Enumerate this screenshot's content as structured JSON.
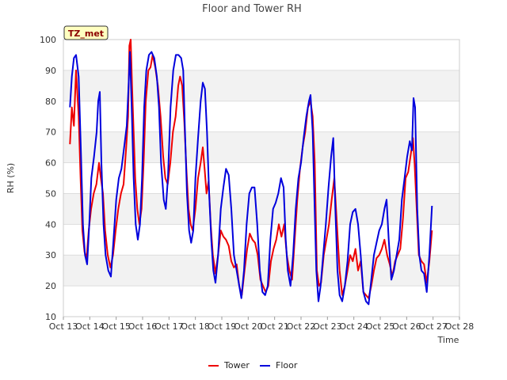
{
  "chart_data": {
    "type": "line",
    "title": "Floor and Tower RH",
    "xlabel": "Time",
    "ylabel": "RH (%)",
    "ylim": [
      10,
      100
    ],
    "yticks": [
      10,
      20,
      30,
      40,
      50,
      60,
      70,
      80,
      90,
      100
    ],
    "xlim": [
      13,
      28
    ],
    "xticks": [
      {
        "v": 13,
        "label": "Oct 13"
      },
      {
        "v": 14,
        "label": "Oct 14"
      },
      {
        "v": 15,
        "label": "Oct 15"
      },
      {
        "v": 16,
        "label": "Oct 16"
      },
      {
        "v": 17,
        "label": "Oct 17"
      },
      {
        "v": 18,
        "label": "Oct 18"
      },
      {
        "v": 19,
        "label": "Oct 19"
      },
      {
        "v": 20,
        "label": "Oct 20"
      },
      {
        "v": 21,
        "label": "Oct 21"
      },
      {
        "v": 22,
        "label": "Oct 22"
      },
      {
        "v": 23,
        "label": "Oct 23"
      },
      {
        "v": 24,
        "label": "Oct 24"
      },
      {
        "v": 25,
        "label": "Oct 25"
      },
      {
        "v": 26,
        "label": "Oct 26"
      },
      {
        "v": 27,
        "label": "Oct 27"
      },
      {
        "v": 28,
        "label": "Oct 28"
      }
    ],
    "site_label": "TZ_met",
    "series": [
      {
        "name": "Tower",
        "color": "#ee0000",
        "points": [
          [
            13.25,
            66
          ],
          [
            13.32,
            78
          ],
          [
            13.4,
            72
          ],
          [
            13.48,
            90
          ],
          [
            13.58,
            75
          ],
          [
            13.65,
            55
          ],
          [
            13.72,
            38
          ],
          [
            13.8,
            31
          ],
          [
            13.88,
            29
          ],
          [
            13.96,
            38
          ],
          [
            14.05,
            45
          ],
          [
            14.15,
            50
          ],
          [
            14.25,
            53
          ],
          [
            14.35,
            60
          ],
          [
            14.42,
            55
          ],
          [
            14.5,
            50
          ],
          [
            14.58,
            38
          ],
          [
            14.68,
            30
          ],
          [
            14.78,
            26
          ],
          [
            14.88,
            30
          ],
          [
            14.98,
            38
          ],
          [
            15.08,
            45
          ],
          [
            15.18,
            50
          ],
          [
            15.28,
            53
          ],
          [
            15.38,
            65
          ],
          [
            15.45,
            75
          ],
          [
            15.5,
            98
          ],
          [
            15.55,
            100
          ],
          [
            15.6,
            85
          ],
          [
            15.66,
            70
          ],
          [
            15.72,
            55
          ],
          [
            15.8,
            45
          ],
          [
            15.88,
            40
          ],
          [
            15.96,
            45
          ],
          [
            16.04,
            60
          ],
          [
            16.12,
            80
          ],
          [
            16.22,
            90
          ],
          [
            16.3,
            91
          ],
          [
            16.38,
            95
          ],
          [
            16.48,
            91
          ],
          [
            16.58,
            85
          ],
          [
            16.68,
            75
          ],
          [
            16.78,
            62
          ],
          [
            16.86,
            55
          ],
          [
            16.95,
            53
          ],
          [
            17.05,
            60
          ],
          [
            17.15,
            70
          ],
          [
            17.25,
            75
          ],
          [
            17.35,
            85
          ],
          [
            17.42,
            88
          ],
          [
            17.5,
            85
          ],
          [
            17.58,
            73
          ],
          [
            17.66,
            58
          ],
          [
            17.74,
            45
          ],
          [
            17.82,
            40
          ],
          [
            17.9,
            38
          ],
          [
            18.0,
            45
          ],
          [
            18.1,
            55
          ],
          [
            18.2,
            60
          ],
          [
            18.28,
            65
          ],
          [
            18.35,
            58
          ],
          [
            18.42,
            50
          ],
          [
            18.5,
            54
          ],
          [
            18.58,
            40
          ],
          [
            18.66,
            30
          ],
          [
            18.76,
            24
          ],
          [
            18.86,
            30
          ],
          [
            18.96,
            38
          ],
          [
            19.06,
            36
          ],
          [
            19.16,
            35
          ],
          [
            19.26,
            33
          ],
          [
            19.36,
            28
          ],
          [
            19.46,
            26
          ],
          [
            19.56,
            27
          ],
          [
            19.66,
            20
          ],
          [
            19.76,
            17
          ],
          [
            19.86,
            25
          ],
          [
            19.96,
            32
          ],
          [
            20.06,
            37
          ],
          [
            20.16,
            35
          ],
          [
            20.26,
            34
          ],
          [
            20.36,
            30
          ],
          [
            20.46,
            22
          ],
          [
            20.56,
            20
          ],
          [
            20.66,
            18
          ],
          [
            20.76,
            20
          ],
          [
            20.86,
            28
          ],
          [
            20.96,
            32
          ],
          [
            21.06,
            35
          ],
          [
            21.16,
            40
          ],
          [
            21.26,
            36
          ],
          [
            21.36,
            40
          ],
          [
            21.46,
            30
          ],
          [
            21.56,
            25
          ],
          [
            21.66,
            22
          ],
          [
            21.76,
            35
          ],
          [
            21.86,
            48
          ],
          [
            21.96,
            58
          ],
          [
            22.06,
            65
          ],
          [
            22.16,
            70
          ],
          [
            22.26,
            78
          ],
          [
            22.36,
            80
          ],
          [
            22.44,
            75
          ],
          [
            22.52,
            60
          ],
          [
            22.6,
            25
          ],
          [
            22.68,
            20
          ],
          [
            22.76,
            21
          ],
          [
            22.86,
            30
          ],
          [
            22.96,
            35
          ],
          [
            23.06,
            40
          ],
          [
            23.16,
            48
          ],
          [
            23.26,
            55
          ],
          [
            23.36,
            40
          ],
          [
            23.46,
            25
          ],
          [
            23.56,
            17
          ],
          [
            23.66,
            20
          ],
          [
            23.76,
            25
          ],
          [
            23.86,
            30
          ],
          [
            23.96,
            28
          ],
          [
            24.06,
            32
          ],
          [
            24.16,
            25
          ],
          [
            24.26,
            28
          ],
          [
            24.36,
            18
          ],
          [
            24.46,
            17
          ],
          [
            24.56,
            16
          ],
          [
            24.66,
            20
          ],
          [
            24.76,
            25
          ],
          [
            24.86,
            29
          ],
          [
            24.96,
            30
          ],
          [
            25.06,
            32
          ],
          [
            25.16,
            35
          ],
          [
            25.26,
            30
          ],
          [
            25.36,
            27
          ],
          [
            25.46,
            23
          ],
          [
            25.56,
            28
          ],
          [
            25.66,
            30
          ],
          [
            25.76,
            32
          ],
          [
            25.86,
            42
          ],
          [
            25.96,
            55
          ],
          [
            26.06,
            57
          ],
          [
            26.16,
            63
          ],
          [
            26.24,
            68
          ],
          [
            26.3,
            60
          ],
          [
            26.38,
            45
          ],
          [
            26.46,
            30
          ],
          [
            26.56,
            28
          ],
          [
            26.66,
            27
          ],
          [
            26.76,
            21
          ],
          [
            26.86,
            28
          ],
          [
            26.96,
            38
          ]
        ]
      },
      {
        "name": "Floor",
        "color": "#0000dd",
        "points": [
          [
            13.25,
            78
          ],
          [
            13.32,
            88
          ],
          [
            13.4,
            94
          ],
          [
            13.48,
            95
          ],
          [
            13.58,
            88
          ],
          [
            13.66,
            65
          ],
          [
            13.74,
            40
          ],
          [
            13.82,
            30
          ],
          [
            13.9,
            27
          ],
          [
            13.98,
            40
          ],
          [
            14.06,
            55
          ],
          [
            14.16,
            62
          ],
          [
            14.26,
            70
          ],
          [
            14.32,
            80
          ],
          [
            14.38,
            83
          ],
          [
            14.44,
            60
          ],
          [
            14.52,
            40
          ],
          [
            14.6,
            30
          ],
          [
            14.7,
            25
          ],
          [
            14.8,
            23
          ],
          [
            14.9,
            35
          ],
          [
            15.0,
            48
          ],
          [
            15.1,
            55
          ],
          [
            15.2,
            58
          ],
          [
            15.3,
            65
          ],
          [
            15.4,
            72
          ],
          [
            15.47,
            85
          ],
          [
            15.52,
            96
          ],
          [
            15.58,
            80
          ],
          [
            15.66,
            55
          ],
          [
            15.74,
            40
          ],
          [
            15.82,
            35
          ],
          [
            15.9,
            40
          ],
          [
            15.98,
            55
          ],
          [
            16.06,
            78
          ],
          [
            16.14,
            90
          ],
          [
            16.24,
            95
          ],
          [
            16.34,
            96
          ],
          [
            16.44,
            94
          ],
          [
            16.54,
            88
          ],
          [
            16.62,
            78
          ],
          [
            16.7,
            60
          ],
          [
            16.8,
            48
          ],
          [
            16.88,
            45
          ],
          [
            16.96,
            55
          ],
          [
            17.06,
            78
          ],
          [
            17.16,
            90
          ],
          [
            17.26,
            95
          ],
          [
            17.36,
            95
          ],
          [
            17.46,
            94
          ],
          [
            17.54,
            90
          ],
          [
            17.6,
            72
          ],
          [
            17.68,
            50
          ],
          [
            17.76,
            38
          ],
          [
            17.84,
            34
          ],
          [
            17.92,
            38
          ],
          [
            18.0,
            55
          ],
          [
            18.1,
            68
          ],
          [
            18.2,
            80
          ],
          [
            18.28,
            86
          ],
          [
            18.36,
            84
          ],
          [
            18.44,
            70
          ],
          [
            18.52,
            50
          ],
          [
            18.6,
            35
          ],
          [
            18.68,
            25
          ],
          [
            18.76,
            21
          ],
          [
            18.86,
            30
          ],
          [
            18.96,
            45
          ],
          [
            19.06,
            52
          ],
          [
            19.16,
            58
          ],
          [
            19.26,
            56
          ],
          [
            19.36,
            45
          ],
          [
            19.46,
            30
          ],
          [
            19.56,
            25
          ],
          [
            19.66,
            20
          ],
          [
            19.74,
            16
          ],
          [
            19.84,
            25
          ],
          [
            19.94,
            40
          ],
          [
            20.04,
            50
          ],
          [
            20.14,
            52
          ],
          [
            20.24,
            52
          ],
          [
            20.34,
            40
          ],
          [
            20.44,
            25
          ],
          [
            20.54,
            18
          ],
          [
            20.64,
            17
          ],
          [
            20.74,
            20
          ],
          [
            20.84,
            35
          ],
          [
            20.94,
            45
          ],
          [
            21.04,
            47
          ],
          [
            21.14,
            50
          ],
          [
            21.24,
            55
          ],
          [
            21.34,
            52
          ],
          [
            21.42,
            35
          ],
          [
            21.5,
            25
          ],
          [
            21.6,
            20
          ],
          [
            21.7,
            30
          ],
          [
            21.8,
            45
          ],
          [
            21.9,
            55
          ],
          [
            22.0,
            60
          ],
          [
            22.1,
            68
          ],
          [
            22.2,
            75
          ],
          [
            22.3,
            80
          ],
          [
            22.36,
            82
          ],
          [
            22.44,
            70
          ],
          [
            22.5,
            50
          ],
          [
            22.58,
            25
          ],
          [
            22.66,
            15
          ],
          [
            22.74,
            20
          ],
          [
            22.84,
            30
          ],
          [
            22.94,
            40
          ],
          [
            23.04,
            52
          ],
          [
            23.14,
            62
          ],
          [
            23.22,
            68
          ],
          [
            23.3,
            45
          ],
          [
            23.38,
            25
          ],
          [
            23.46,
            17
          ],
          [
            23.56,
            15
          ],
          [
            23.66,
            20
          ],
          [
            23.76,
            28
          ],
          [
            23.86,
            40
          ],
          [
            23.96,
            44
          ],
          [
            24.06,
            45
          ],
          [
            24.16,
            40
          ],
          [
            24.26,
            30
          ],
          [
            24.36,
            18
          ],
          [
            24.46,
            15
          ],
          [
            24.56,
            14
          ],
          [
            24.66,
            22
          ],
          [
            24.76,
            30
          ],
          [
            24.86,
            34
          ],
          [
            24.96,
            38
          ],
          [
            25.06,
            40
          ],
          [
            25.16,
            45
          ],
          [
            25.24,
            48
          ],
          [
            25.32,
            35
          ],
          [
            25.42,
            22
          ],
          [
            25.52,
            25
          ],
          [
            25.62,
            30
          ],
          [
            25.72,
            35
          ],
          [
            25.82,
            48
          ],
          [
            25.92,
            55
          ],
          [
            26.02,
            62
          ],
          [
            26.12,
            67
          ],
          [
            26.2,
            64
          ],
          [
            26.26,
            81
          ],
          [
            26.32,
            78
          ],
          [
            26.4,
            45
          ],
          [
            26.48,
            30
          ],
          [
            26.56,
            25
          ],
          [
            26.66,
            24
          ],
          [
            26.76,
            18
          ],
          [
            26.86,
            30
          ],
          [
            26.96,
            46
          ]
        ]
      }
    ]
  }
}
